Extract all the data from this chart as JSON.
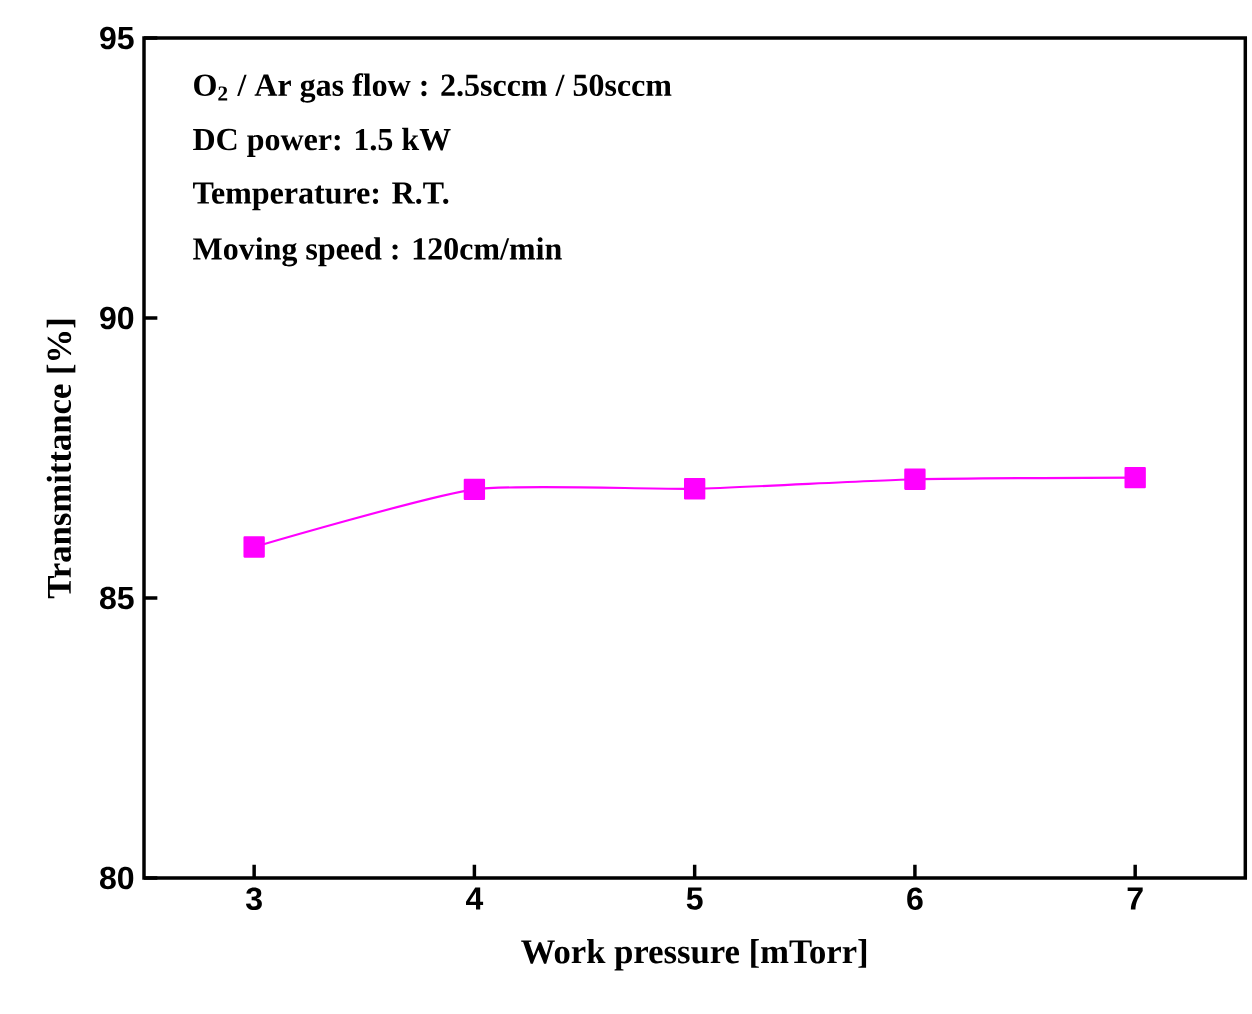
{
  "chart_data": {
    "type": "line",
    "xlabel": "Work pressure [mTorr]",
    "ylabel": "Transmittance [%]",
    "annotations": [
      "O$_{2}$ / Ar gas flow : 2.5sccm / 50sccm",
      "DC power: 1.5 kW",
      "Temperature: R.T.",
      "Moving speed : 120cm/min"
    ],
    "x": [
      3,
      4,
      5,
      6,
      7
    ],
    "series": [
      {
        "color": "#ff00ff",
        "values": [
          85.91,
          86.94,
          86.95,
          87.12,
          87.15
        ]
      }
    ],
    "xlim": [
      2.5,
      7.5
    ],
    "ylim": [
      80,
      95
    ],
    "xticks": [
      3,
      4,
      5,
      6,
      7
    ],
    "yticks": [
      80,
      85,
      90,
      95
    ],
    "marker": "square",
    "line_style": "solid"
  }
}
